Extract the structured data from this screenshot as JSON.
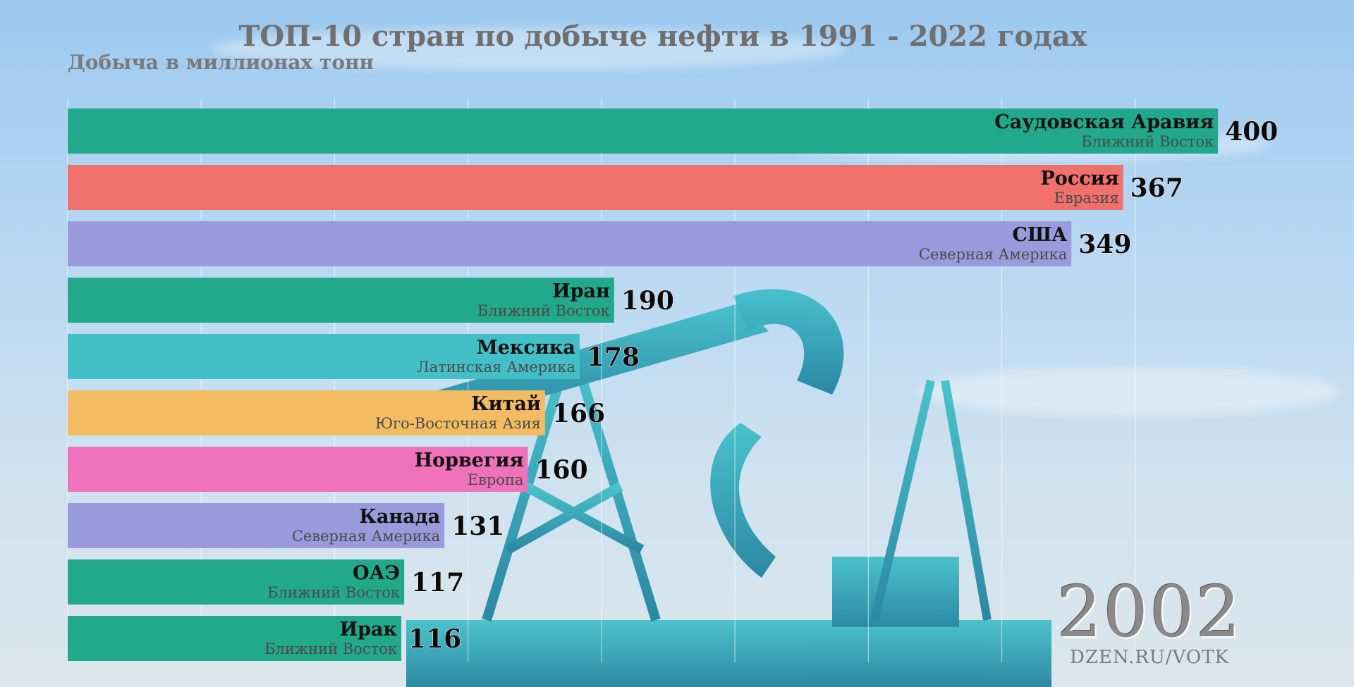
{
  "chart_data": {
    "type": "bar",
    "orientation": "horizontal",
    "title": "ТОП-10 стран по добыче нефти в 1991 - 2022 годах",
    "subtitle": "Добыча в миллионах тонн",
    "year": "2002",
    "watermark": "DZEN.RU/VOTK",
    "grid": true,
    "xlim": [
      0,
      440
    ],
    "categories": [
      "Саудовская Аравия",
      "Россия",
      "США",
      "Иран",
      "Мексика",
      "Китай",
      "Норвегия",
      "Канада",
      "ОАЭ",
      "Ирак"
    ],
    "regions": [
      "Ближний Восток",
      "Евразия",
      "Северная Америка",
      "Ближний Восток",
      "Латинская Америка",
      "Юго-Восточная Азия",
      "Европа",
      "Северная Америка",
      "Ближний Восток",
      "Ближний Восток"
    ],
    "values": [
      400,
      367,
      349,
      190,
      178,
      166,
      160,
      131,
      117,
      116
    ],
    "colors": [
      "#22a88a",
      "#f0706b",
      "#9a9bdc",
      "#22a88a",
      "#43c0c7",
      "#f4bc62",
      "#ef72bb",
      "#9a9bdc",
      "#22a88a",
      "#22a88a"
    ]
  }
}
